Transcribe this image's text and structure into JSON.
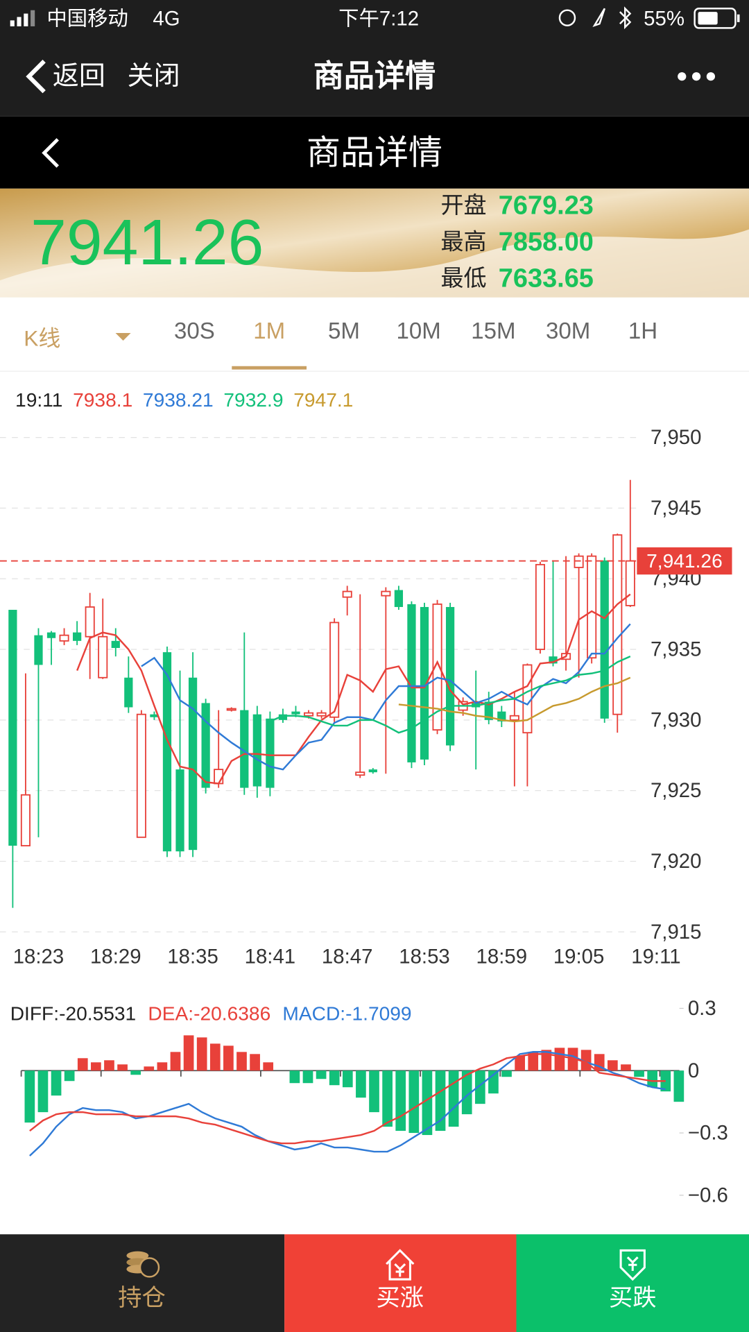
{
  "status_bar": {
    "carrier": "中国移动",
    "network": "4G",
    "time": "下午7:12",
    "battery": "55%"
  },
  "nav": {
    "back": "返回",
    "close": "关闭",
    "title": "商品详情"
  },
  "header": {
    "title": "商品详情"
  },
  "quote": {
    "price": "7941.26",
    "open_label": "开盘",
    "open": "7679.23",
    "high_label": "最高",
    "high": "7858.00",
    "low_label": "最低",
    "low": "7633.65"
  },
  "tabs": {
    "kline": "K线",
    "periods": [
      "30S",
      "1M",
      "5M",
      "10M",
      "15M",
      "30M",
      "1H"
    ],
    "selected": 1
  },
  "bottom_bar": {
    "hold": "持仓",
    "buy_up": "买涨",
    "buy_down": "买跌"
  },
  "chart_data": [
    {
      "type": "candlestick",
      "time_label": "19:11",
      "categories": [
        null,
        null,
        "18:23",
        null,
        null,
        null,
        null,
        null,
        "18:29",
        null,
        null,
        null,
        null,
        null,
        "18:35",
        null,
        null,
        null,
        null,
        null,
        "18:41",
        null,
        null,
        null,
        null,
        null,
        "18:47",
        null,
        null,
        null,
        null,
        null,
        "18:53",
        null,
        null,
        null,
        null,
        null,
        "18:59",
        null,
        null,
        null,
        null,
        null,
        "19:05",
        null,
        null,
        null,
        null,
        null,
        "19:11"
      ],
      "open": [
        7937.8,
        7921.1,
        7936.0,
        7936.2,
        7935.6,
        7936.2,
        7935.9,
        7933.0,
        7935.6,
        7933.0,
        7921.7,
        7930.4,
        7934.8,
        7926.5,
        7933.0,
        7931.2,
        7925.5,
        7930.7,
        7930.7,
        7930.4,
        7930.1,
        7930.4,
        7930.6,
        7930.3,
        7930.3,
        7930.2,
        7938.7,
        7926.1,
        7926.5,
        7938.8,
        7939.2,
        7938.2,
        7938.0,
        7929.3,
        7938.0,
        7930.7,
        7931.2,
        7931.3,
        7930.6,
        7930.0,
        7929.1,
        7935.0,
        7934.5,
        7934.3,
        7940.8,
        7934.4,
        7941.3,
        7930.4,
        7938.1,
        null,
        null
      ],
      "high": [
        7937.8,
        7933.3,
        7936.5,
        7936.3,
        7936.5,
        7937.0,
        7939.0,
        7938.6,
        7936.5,
        7934.5,
        7930.7,
        7930.6,
        7935.2,
        7933.5,
        7934.8,
        7931.5,
        7930.7,
        7930.9,
        7936.2,
        7931.0,
        7930.6,
        7930.8,
        7931.0,
        7930.7,
        7930.7,
        7937.2,
        7939.5,
        7938.9,
        7926.6,
        7939.4,
        7939.5,
        7938.4,
        7938.3,
        7938.5,
        7938.3,
        7931.6,
        7933.5,
        7932.0,
        7931.0,
        7932.0,
        7934.0,
        7941.2,
        7941.3,
        7941.6,
        7941.8,
        7941.8,
        7941.5,
        7943.2,
        7947.0,
        null,
        null
      ],
      "low": [
        7916.7,
        7921.1,
        7921.7,
        7933.9,
        7935.3,
        7935.3,
        7932.9,
        7932.9,
        7934.5,
        7930.5,
        7921.7,
        7930.0,
        7920.3,
        7920.3,
        7920.3,
        7924.8,
        7925.2,
        7930.6,
        7924.7,
        7924.5,
        7924.6,
        7929.8,
        7930.2,
        7930.1,
        7930.1,
        7929.8,
        7937.4,
        7925.9,
        7926.2,
        7926.2,
        7937.8,
        7926.6,
        7926.8,
        7929.0,
        7927.8,
        7930.3,
        7926.5,
        7929.7,
        7929.5,
        7925.3,
        7925.3,
        7934.7,
        7933.8,
        7933.5,
        7933.0,
        7934.0,
        7929.8,
        7929.1,
        7938.0,
        null,
        null
      ],
      "close": [
        7921.1,
        7924.7,
        7933.9,
        7935.8,
        7936.0,
        7935.6,
        7938.0,
        7935.9,
        7935.1,
        7930.9,
        7930.4,
        7930.2,
        7920.7,
        7920.7,
        7920.8,
        7925.2,
        7926.5,
        7930.8,
        7925.2,
        7925.3,
        7925.2,
        7930.0,
        7930.4,
        7930.5,
        7930.5,
        7936.9,
        7939.1,
        7926.3,
        7926.3,
        7939.1,
        7938.0,
        7927.0,
        7927.2,
        7938.2,
        7928.2,
        7931.3,
        7930.9,
        7930.0,
        7929.9,
        7930.3,
        7933.9,
        7941.0,
        7934.0,
        7934.7,
        7941.6,
        7941.6,
        7930.1,
        7943.1,
        7941.26,
        null,
        null
      ],
      "up_color": "#e8413a",
      "down_color": "#12c07a",
      "series": [
        {
          "color": "#e8413a",
          "latest": "7938.1",
          "values": [
            null,
            null,
            null,
            null,
            null,
            7933.5,
            7935.8,
            7936.2,
            7936.0,
            7935.0,
            7933.5,
            7931.0,
            7928.6,
            7926.7,
            7926.5,
            7925.6,
            7925.5,
            7927.1,
            7927.6,
            7927.6,
            7927.5,
            7927.5,
            7927.5,
            7928.8,
            7930.0,
            7930.6,
            7933.2,
            7932.8,
            7932.0,
            7933.6,
            7933.8,
            7932.3,
            7932.3,
            7934.1,
            7932.1,
            7931.1,
            7931.3,
            7931.1,
            7931.5,
            7932.0,
            7932.4,
            7934.0,
            7934.1,
            7934.5,
            7937.1,
            7937.7,
            7937.2,
            7938.2,
            7938.9,
            null,
            null
          ]
        },
        {
          "color": "#2f7ad6",
          "latest": "7938.21",
          "values": [
            null,
            null,
            null,
            null,
            null,
            null,
            null,
            null,
            null,
            null,
            7933.8,
            7934.4,
            7933.2,
            7931.4,
            7930.8,
            7929.9,
            7929.1,
            7928.4,
            7927.8,
            7927.2,
            7926.7,
            7926.5,
            7927.5,
            7928.4,
            7928.6,
            7929.8,
            7930.2,
            7930.2,
            7930.0,
            7931.4,
            7932.4,
            7932.4,
            7932.4,
            7933.0,
            7932.8,
            7932.0,
            7931.2,
            7931.5,
            7932.0,
            7931.5,
            7931.1,
            7932.3,
            7932.9,
            7932.6,
            7933.4,
            7934.7,
            7934.7,
            7935.8,
            7936.8,
            null,
            null
          ]
        },
        {
          "color": "#12c07a",
          "latest": "7932.9",
          "values": [
            null,
            null,
            null,
            null,
            null,
            null,
            null,
            null,
            null,
            null,
            null,
            null,
            null,
            null,
            null,
            null,
            null,
            null,
            null,
            null,
            7929.9,
            7930.3,
            7930.3,
            7930.2,
            7929.9,
            7929.6,
            7929.6,
            7930.0,
            7930.0,
            7929.6,
            7929.1,
            7929.4,
            7930.0,
            7930.6,
            7931.0,
            7931.0,
            7931.0,
            7931.2,
            7931.4,
            7931.5,
            7932.0,
            7932.4,
            7932.6,
            7932.8,
            7933.2,
            7933.3,
            7933.5,
            7934.1,
            7934.5,
            null,
            null
          ]
        },
        {
          "color": "#c79a2e",
          "latest": "7947.1",
          "values": [
            null,
            null,
            null,
            null,
            null,
            null,
            null,
            null,
            null,
            null,
            null,
            null,
            null,
            null,
            null,
            null,
            null,
            null,
            null,
            null,
            null,
            null,
            null,
            null,
            null,
            null,
            null,
            null,
            null,
            null,
            7931.1,
            7931.0,
            7930.9,
            7930.8,
            7930.6,
            7930.5,
            7930.3,
            7930.2,
            7930.0,
            7929.9,
            7930.0,
            7930.5,
            7931.0,
            7931.2,
            7931.5,
            7932.0,
            7932.4,
            7932.6,
            7933.0,
            null,
            null
          ]
        }
      ],
      "price_line": {
        "value": 7941.26,
        "label": "7,941.26",
        "color": "#e8413a"
      },
      "ylim": [
        7915,
        7950
      ],
      "yticks": [
        {
          "value": 7915,
          "label": "7,915"
        },
        {
          "value": 7920,
          "label": "7,920"
        },
        {
          "value": 7925,
          "label": "7,925"
        },
        {
          "value": 7930,
          "label": "7,930"
        },
        {
          "value": 7935,
          "label": "7,935"
        },
        {
          "value": 7940,
          "label": "7,940"
        },
        {
          "value": 7945,
          "label": "7,945"
        },
        {
          "value": 7950,
          "label": "7,950"
        }
      ],
      "grid": true
    },
    {
      "type": "macd",
      "series": [
        {
          "name": "DIFF:-20.5531",
          "color": "#2f7ad6",
          "legend_color": "#222222",
          "values": [
            -0.41,
            -0.35,
            -0.27,
            -0.21,
            -0.18,
            -0.19,
            -0.19,
            -0.2,
            -0.23,
            -0.22,
            -0.2,
            -0.18,
            -0.16,
            -0.2,
            -0.23,
            -0.25,
            -0.27,
            -0.31,
            -0.34,
            -0.36,
            -0.38,
            -0.37,
            -0.35,
            -0.37,
            -0.37,
            -0.38,
            -0.39,
            -0.39,
            -0.36,
            -0.32,
            -0.28,
            -0.24,
            -0.18,
            -0.12,
            -0.07,
            -0.02,
            0.03,
            0.08,
            0.09,
            0.09,
            0.08,
            0.07,
            0.04,
            0.02,
            -0.01,
            -0.03,
            -0.06,
            -0.08,
            -0.09,
            null
          ]
        },
        {
          "name": "DEA:-20.6386",
          "color": "#e8413a",
          "legend_color": "#e8413a",
          "values": [
            -0.29,
            -0.24,
            -0.21,
            -0.2,
            -0.2,
            -0.21,
            -0.21,
            -0.21,
            -0.22,
            -0.22,
            -0.22,
            -0.22,
            -0.23,
            -0.25,
            -0.26,
            -0.28,
            -0.3,
            -0.32,
            -0.34,
            -0.35,
            -0.35,
            -0.34,
            -0.34,
            -0.33,
            -0.32,
            -0.31,
            -0.29,
            -0.25,
            -0.22,
            -0.18,
            -0.14,
            -0.1,
            -0.06,
            -0.02,
            0.01,
            0.03,
            0.06,
            0.07,
            0.08,
            0.08,
            0.07,
            0.06,
            0.04,
            -0.01,
            -0.02,
            -0.03,
            -0.04,
            -0.05,
            -0.05,
            null
          ]
        }
      ],
      "bars": {
        "name": "MACD:-1.7099",
        "legend_color": "#2f7ad6",
        "values": [
          -0.25,
          -0.2,
          -0.12,
          -0.05,
          0.06,
          0.04,
          0.05,
          0.03,
          -0.02,
          0.02,
          0.04,
          0.09,
          0.17,
          0.16,
          0.13,
          0.12,
          0.09,
          0.08,
          0.04,
          0,
          -0.06,
          -0.06,
          -0.04,
          -0.07,
          -0.08,
          -0.13,
          -0.2,
          -0.27,
          -0.29,
          -0.3,
          -0.31,
          -0.29,
          -0.27,
          -0.21,
          -0.16,
          -0.11,
          -0.03,
          0.07,
          0.09,
          0.1,
          0.11,
          0.11,
          0.1,
          0.08,
          0.05,
          0.03,
          -0.03,
          -0.08,
          -0.1,
          -0.15
        ]
      },
      "up_color": "#e8413a",
      "down_color": "#12c07a",
      "ylim": [
        -0.6,
        0.3
      ],
      "yticks": [
        0.3,
        0,
        {
          "value": -0.3,
          "label": "−0.3"
        },
        {
          "value": -0.6,
          "label": "−0.6"
        }
      ]
    }
  ]
}
